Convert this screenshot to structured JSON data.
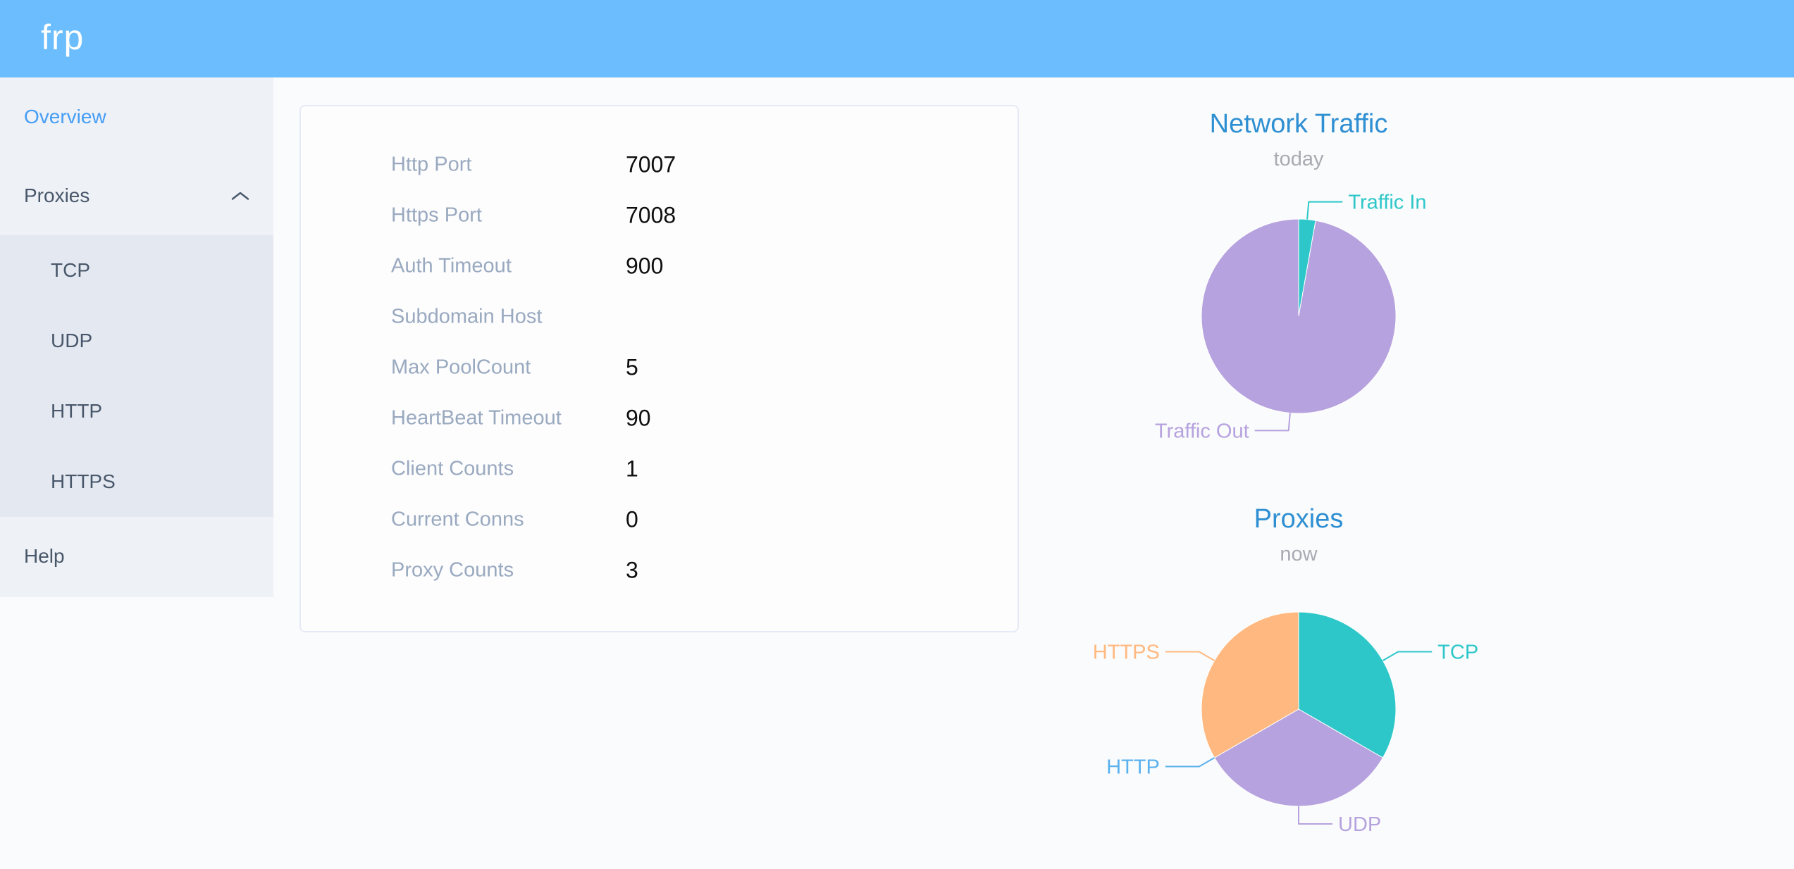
{
  "app": {
    "logo_text": "frp"
  },
  "theme": {
    "header_bg": "#6bbdfe",
    "sidebar_bg": "#eef1f6",
    "submenu_bg": "#e4e8f1",
    "menu_item_color": "#48576a",
    "active_menu_item_color": "#459df5",
    "chart_title_color": "#2e8fd2",
    "chart_subtitle_color": "#a8abb2",
    "info_label_color": "#99a9bf",
    "info_value_color": "#0f0f0f",
    "pie_colors": [
      "#2ec7c9",
      "#b6a2de",
      "#5ab1ef",
      "#ffb980"
    ]
  },
  "sidebar": {
    "items": [
      {
        "label": "Overview",
        "active": true
      },
      {
        "label": "Proxies",
        "expanded": true,
        "children": [
          "TCP",
          "UDP",
          "HTTP",
          "HTTPS"
        ]
      },
      {
        "label": "Help"
      }
    ]
  },
  "server_info": {
    "rows": [
      {
        "label": "Http Port",
        "value": "7007"
      },
      {
        "label": "Https Port",
        "value": "7008"
      },
      {
        "label": "Auth Timeout",
        "value": "900"
      },
      {
        "label": "Subdomain Host",
        "value": ""
      },
      {
        "label": "Max PoolCount",
        "value": "5"
      },
      {
        "label": "HeartBeat Timeout",
        "value": "90"
      },
      {
        "label": "Client Counts",
        "value": "1"
      },
      {
        "label": "Current Conns",
        "value": "0"
      },
      {
        "label": "Proxy Counts",
        "value": "3"
      }
    ]
  },
  "chart_data": [
    {
      "type": "pie",
      "title": "Network Traffic",
      "subtitle": "today",
      "slices": [
        {
          "name": "Traffic In",
          "value": 2.8,
          "color": "#2ec7c9"
        },
        {
          "name": "Traffic Out",
          "value": 97.2,
          "color": "#b6a2de"
        }
      ],
      "start_angle_deg": 90,
      "clockwise": true,
      "legend": "none",
      "labels": "outside-leader-lines",
      "note_values": "percent of arc, estimated from slice angles"
    },
    {
      "type": "pie",
      "title": "Proxies",
      "subtitle": "now",
      "slices": [
        {
          "name": "TCP",
          "value": 1,
          "color": "#2ec7c9"
        },
        {
          "name": "UDP",
          "value": 1,
          "color": "#b6a2de"
        },
        {
          "name": "HTTP",
          "value": 0,
          "color": "#5ab1ef"
        },
        {
          "name": "HTTPS",
          "value": 1,
          "color": "#ffb980"
        }
      ],
      "start_angle_deg": 90,
      "clockwise": true,
      "legend": "none",
      "labels": "outside-leader-lines"
    }
  ]
}
